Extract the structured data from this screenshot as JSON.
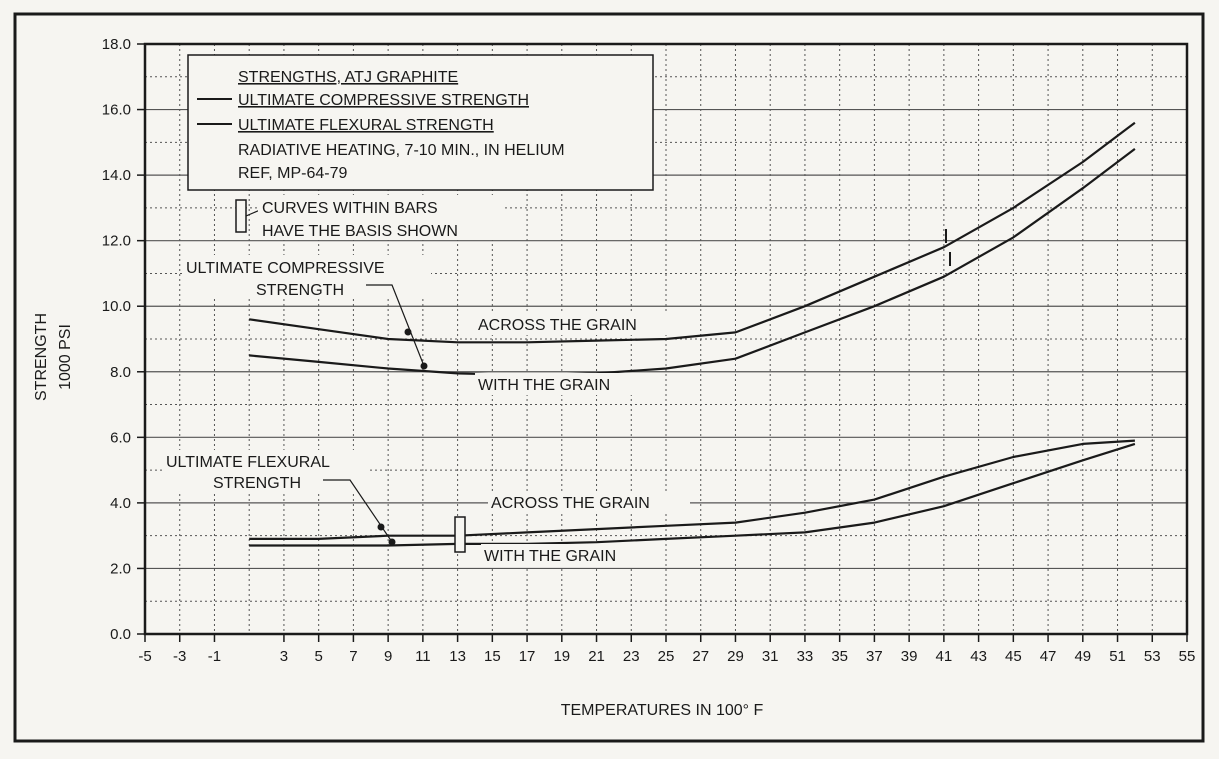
{
  "chart_data": {
    "type": "line",
    "xlabel": "TEMPERATURES IN 100° F",
    "ylabel": [
      "STRENGTH",
      "1000 PSI"
    ],
    "xlim": [
      -5,
      55
    ],
    "ylim": [
      0,
      18
    ],
    "x_ticks": [
      -5,
      -3,
      -1,
      3,
      5,
      7,
      9,
      11,
      13,
      15,
      17,
      19,
      21,
      23,
      25,
      27,
      29,
      31,
      33,
      35,
      37,
      39,
      41,
      43,
      45,
      47,
      49,
      51,
      53,
      55
    ],
    "x_tick_labels": [
      "-5",
      "-3",
      "-1",
      "3",
      "5",
      "7",
      "9",
      "11",
      "13",
      "15",
      "17",
      "19",
      "21",
      "23",
      "25",
      "27",
      "29",
      "31",
      "33",
      "35",
      "37",
      "39",
      "41",
      "43",
      "45",
      "47",
      "49",
      "51",
      "53",
      "55"
    ],
    "y_ticks": [
      0,
      2,
      4,
      6,
      8,
      10,
      12,
      14,
      16,
      18
    ],
    "y_tick_labels": [
      "0.0",
      "2.0",
      "4.0",
      "6.0",
      "8.0",
      "10.0",
      "12.0",
      "14.0",
      "16.0",
      "18.0"
    ],
    "grid": true,
    "legend": {
      "position": "top-left",
      "lines": [
        "STRENGTHS, ATJ GRAPHITE",
        "ULTIMATE COMPRESSIVE STRENGTH",
        "ULTIMATE FLEXURAL STRENGTH",
        "RADIATIVE HEATING, 7-10 MIN., IN HELIUM",
        "REF, MP-64-79"
      ],
      "note_lines": [
        "CURVES WITHIN BARS",
        "HAVE THE BASIS SHOWN"
      ]
    },
    "series": [
      {
        "name": "ULTIMATE COMPRESSIVE STRENGTH",
        "label": "ACROSS THE GRAIN",
        "x": [
          1,
          5,
          9,
          13,
          17,
          21,
          25,
          29,
          33,
          37,
          41,
          45,
          49,
          52
        ],
        "y": [
          9.6,
          9.3,
          9.0,
          8.9,
          8.9,
          8.95,
          9.0,
          9.2,
          10.0,
          10.9,
          11.8,
          13.0,
          14.4,
          15.6
        ]
      },
      {
        "name": "ULTIMATE COMPRESSIVE STRENGTH",
        "label": "WITH THE GRAIN",
        "x": [
          1,
          5,
          9,
          13,
          17,
          21,
          25,
          29,
          33,
          37,
          41,
          45,
          49,
          52
        ],
        "y": [
          8.5,
          8.3,
          8.1,
          7.95,
          7.9,
          7.95,
          8.1,
          8.4,
          9.2,
          10.0,
          10.9,
          12.1,
          13.6,
          14.8
        ]
      },
      {
        "name": "ULTIMATE FLEXURAL STRENGTH",
        "label": "ACROSS THE GRAIN",
        "x": [
          1,
          5,
          9,
          13,
          17,
          21,
          25,
          29,
          33,
          37,
          41,
          45,
          49,
          52
        ],
        "y": [
          2.9,
          2.9,
          3.0,
          3.0,
          3.1,
          3.2,
          3.3,
          3.4,
          3.7,
          4.1,
          4.8,
          5.4,
          5.8,
          5.9
        ]
      },
      {
        "name": "ULTIMATE FLEXURAL STRENGTH",
        "label": "WITH THE GRAIN",
        "x": [
          1,
          5,
          9,
          13,
          17,
          21,
          25,
          29,
          33,
          37,
          41,
          45,
          49,
          52
        ],
        "y": [
          2.7,
          2.7,
          2.7,
          2.75,
          2.75,
          2.8,
          2.9,
          3.0,
          3.1,
          3.4,
          3.9,
          4.6,
          5.3,
          5.8
        ]
      }
    ],
    "annotations": {
      "compressive_callout": [
        "ULTIMATE COMPRESSIVE",
        "STRENGTH"
      ],
      "flexural_callout": [
        "ULTIMATE FLEXURAL",
        "STRENGTH"
      ],
      "across_label": "ACROSS THE GRAIN",
      "with_label": "WITH THE GRAIN"
    }
  },
  "colors": {
    "ink": "#1a1a1a",
    "grid": "#555555",
    "background": "#f6f5f1"
  }
}
